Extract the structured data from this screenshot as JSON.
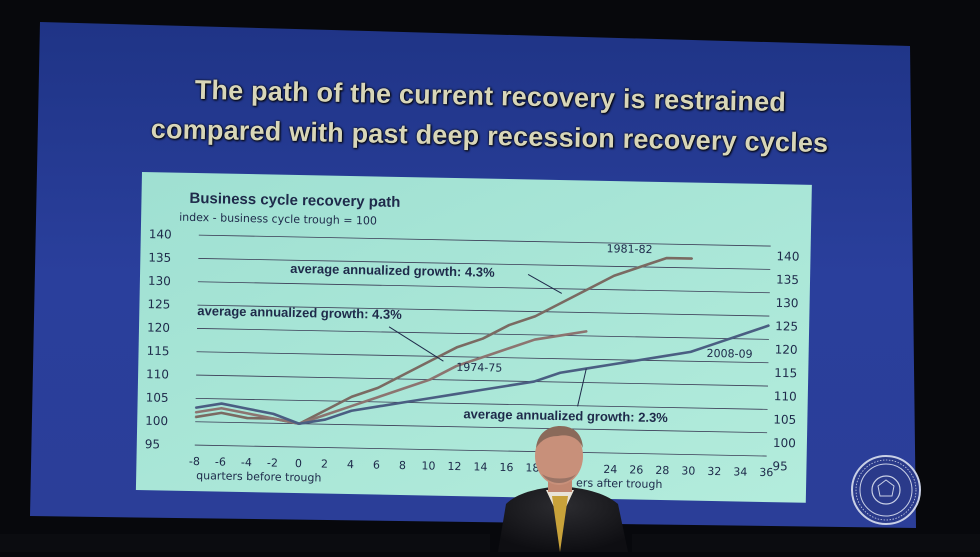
{
  "slide": {
    "title_line1": "The path of the current recovery is restrained",
    "title_line2": "compared with past deep recession recovery cycles"
  },
  "chart_data": {
    "type": "line",
    "title": "Business cycle recovery path",
    "subtitle": "index - business cycle trough = 100",
    "xlabel_left": "quarters before trough",
    "xlabel_right": "ers after trough",
    "x_ticks": [
      "-8",
      "-6",
      "-4",
      "-2",
      "0",
      "2",
      "4",
      "6",
      "8",
      "10",
      "12",
      "14",
      "16",
      "18",
      "24",
      "26",
      "28",
      "30",
      "32",
      "34",
      "36"
    ],
    "y_ticks_left": [
      "140",
      "135",
      "130",
      "125",
      "120",
      "115",
      "110",
      "105",
      "100",
      "95"
    ],
    "y_ticks_right": [
      "140",
      "135",
      "130",
      "125",
      "120",
      "115",
      "110",
      "105",
      "100",
      "95"
    ],
    "ylim": [
      95,
      140
    ],
    "grid": true,
    "series": [
      {
        "name": "1981-82",
        "color": "#7a6a62",
        "x": [
          -8,
          -6,
          -4,
          -2,
          0,
          2,
          4,
          6,
          8,
          10,
          12,
          14,
          16,
          18,
          20,
          22,
          24,
          26,
          28,
          30
        ],
        "values": [
          101,
          102,
          101,
          101,
          100,
          103,
          106,
          108,
          111,
          114,
          117,
          119,
          122,
          124,
          127,
          130,
          133,
          135,
          137,
          137
        ]
      },
      {
        "name": "1974-75",
        "color": "#8c7470",
        "x": [
          -8,
          -6,
          -4,
          -2,
          0,
          2,
          4,
          6,
          8,
          10,
          12,
          14,
          16,
          18,
          20,
          22
        ],
        "values": [
          102,
          103,
          102,
          101,
          100,
          102,
          104,
          106,
          108,
          110,
          113,
          115,
          117,
          119,
          120,
          121
        ]
      },
      {
        "name": "2008-09",
        "color": "#4a5e82",
        "x": [
          -8,
          -6,
          -4,
          -2,
          0,
          2,
          4,
          6,
          8,
          10,
          12,
          14,
          16,
          18,
          20,
          22,
          24,
          26,
          28,
          30,
          32,
          34,
          36
        ],
        "values": [
          103,
          104,
          103,
          102,
          100,
          101,
          103,
          104,
          105,
          106,
          107,
          108,
          109,
          110,
          112,
          113,
          114,
          115,
          116,
          117,
          119,
          121,
          123
        ]
      }
    ],
    "annotations": [
      {
        "text": "average annualized growth: 4.3%",
        "target": "1981-82"
      },
      {
        "text": "average annualized growth: 4.3%",
        "target": "1974-75"
      },
      {
        "text": "average annualized growth: 2.3%",
        "target": "2008-09"
      }
    ]
  },
  "colors": {
    "slide_top": "#233a8c",
    "slide_bottom": "#2f44a4",
    "chart_bg": "#a8e6d6",
    "gridline": "#3a3a55",
    "text_dark": "#1e2a4a"
  },
  "icons": {
    "seal": "federal-reserve-seal-icon"
  }
}
